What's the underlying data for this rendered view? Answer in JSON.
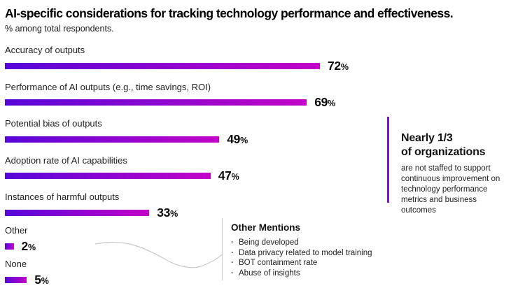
{
  "header": {
    "title": "AI-specific considerations for tracking technology performance and effectiveness.",
    "subtitle": "% among total respondents."
  },
  "chart_data": {
    "type": "bar",
    "orientation": "horizontal",
    "categories": [
      "Accuracy of outputs",
      "Performance of AI outputs (e.g., time savings, ROI)",
      "Potential bias of outputs",
      "Adoption rate of AI capabilities",
      "Instances of harmful outputs",
      "Other",
      "None"
    ],
    "values": [
      72,
      69,
      49,
      47,
      33,
      2,
      5
    ],
    "value_suffix": "%",
    "xlim": [
      0,
      100
    ],
    "grid": false,
    "legend": "none",
    "bar_gradient_start": "#5606d9",
    "bar_gradient_end": "#c303c7",
    "value_label_position": "end-of-bar"
  },
  "callout": {
    "heading": "Nearly 1/3\nof organizations",
    "body": "are not staffed to support\ncontinuous improvement on\ntechnology performance\nmetrics and business outcomes",
    "accent_color": "#7f0de4"
  },
  "other_mentions": {
    "heading": "Other Mentions",
    "bullet_glyph": "·",
    "items": [
      "Being developed",
      "Data privacy related to model training",
      "BOT containment rate",
      "Abuse of insights"
    ]
  },
  "connector": {
    "color": "#c9c9c9"
  }
}
